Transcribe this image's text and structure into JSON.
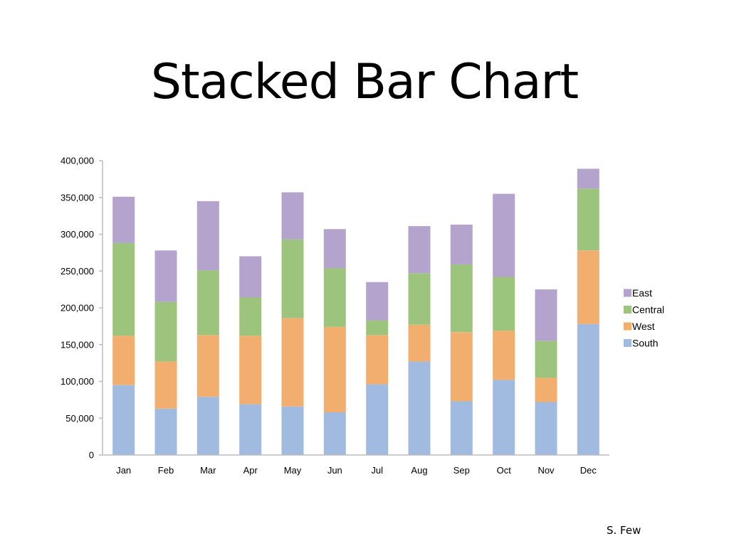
{
  "slide": {
    "title": "Stacked Bar Chart",
    "credit": "S. Few"
  },
  "chart_data": {
    "type": "bar",
    "stacked": true,
    "title": "",
    "xlabel": "",
    "ylabel": "",
    "ylim": [
      0,
      400000
    ],
    "yticks": [
      0,
      50000,
      100000,
      150000,
      200000,
      250000,
      300000,
      350000,
      400000
    ],
    "ytick_labels": [
      "0",
      "50,000",
      "100,000",
      "150,000",
      "200,000",
      "250,000",
      "300,000",
      "350,000",
      "400,000"
    ],
    "categories": [
      "Jan",
      "Feb",
      "Mar",
      "Apr",
      "May",
      "Jun",
      "Jul",
      "Aug",
      "Sep",
      "Oct",
      "Nov",
      "Dec"
    ],
    "series": [
      {
        "name": "South",
        "color": "#a1bbe0",
        "values": [
          95000,
          63000,
          79000,
          69000,
          66000,
          58000,
          96000,
          127000,
          73000,
          102000,
          72000,
          178000
        ]
      },
      {
        "name": "West",
        "color": "#f2ae6e",
        "values": [
          67000,
          64000,
          84000,
          93000,
          120000,
          116000,
          67000,
          50000,
          94000,
          67000,
          33000,
          100000
        ]
      },
      {
        "name": "Central",
        "color": "#9cc47c",
        "values": [
          126000,
          81000,
          88000,
          52000,
          107000,
          80000,
          20000,
          70000,
          92000,
          73000,
          50000,
          84000
        ]
      },
      {
        "name": "East",
        "color": "#b3a3cd",
        "values": [
          63000,
          70000,
          94000,
          56000,
          64000,
          53000,
          52000,
          64000,
          54000,
          113000,
          70000,
          27000
        ]
      }
    ],
    "legend": {
      "position": "right",
      "order": [
        "East",
        "Central",
        "West",
        "South"
      ]
    },
    "grid": false
  }
}
